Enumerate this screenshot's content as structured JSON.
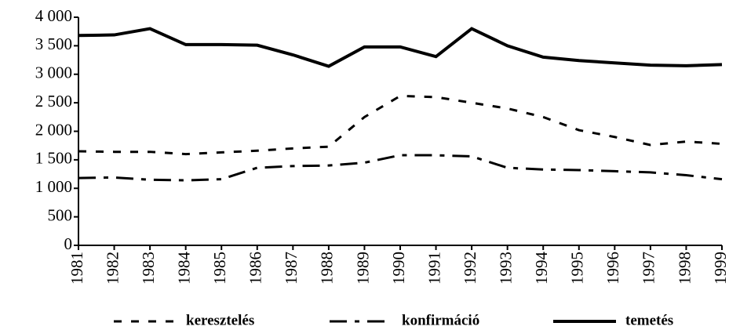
{
  "chart_data": {
    "type": "line",
    "categories": [
      "1981",
      "1982",
      "1983",
      "1984",
      "1985",
      "1986",
      "1987",
      "1988",
      "1989",
      "1990",
      "1991",
      "1992",
      "1993",
      "1994",
      "1995",
      "1996",
      "1997",
      "1998",
      "1999"
    ],
    "series": [
      {
        "name": "keresztelés",
        "color": "#000000",
        "dash": "dashed",
        "values": [
          1650,
          1640,
          1640,
          1600,
          1630,
          1660,
          1700,
          1730,
          2250,
          2620,
          2600,
          2500,
          2400,
          2250,
          2020,
          1900,
          1760,
          1820,
          1780
        ]
      },
      {
        "name": "konfirmáció",
        "color": "#000000",
        "dash": "dashdot",
        "values": [
          1180,
          1190,
          1150,
          1140,
          1160,
          1360,
          1390,
          1400,
          1450,
          1580,
          1580,
          1560,
          1360,
          1330,
          1320,
          1300,
          1280,
          1230,
          1160
        ]
      },
      {
        "name": "temetés",
        "color": "#000000",
        "dash": "solid",
        "values": [
          3680,
          3690,
          3800,
          3520,
          3520,
          3510,
          3340,
          3140,
          3480,
          3480,
          3310,
          3800,
          3500,
          3300,
          3240,
          3200,
          3160,
          3150,
          3170
        ]
      }
    ],
    "ylim": [
      0,
      4000
    ],
    "yticks": [
      0,
      500,
      {
        "value": 1000,
        "label": "1 000"
      },
      {
        "value": 1500,
        "label": "1 500"
      },
      {
        "value": 2000,
        "label": "2 000"
      },
      {
        "value": 2500,
        "label": "2 500"
      },
      {
        "value": 3000,
        "label": "3 000"
      },
      {
        "value": 3500,
        "label": "3 500"
      },
      {
        "value": 4000,
        "label": "4 000"
      }
    ],
    "legend": "bottom",
    "grid": false
  }
}
